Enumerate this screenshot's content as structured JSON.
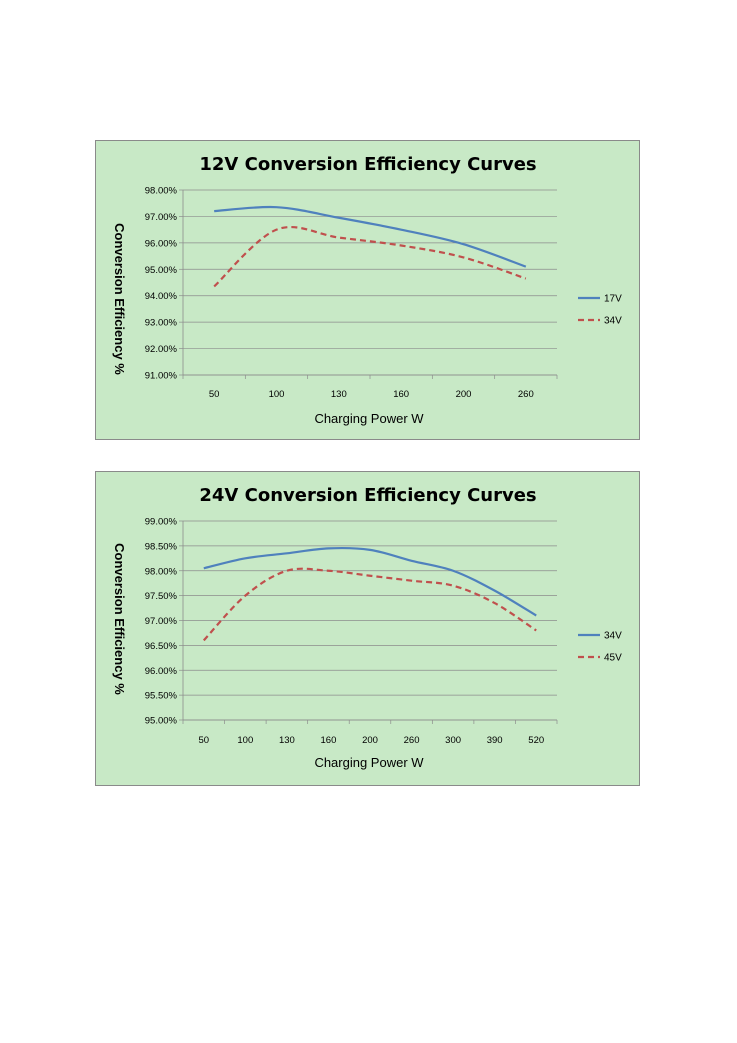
{
  "chart_data": [
    {
      "type": "line",
      "title": "12V Conversion Efficiency Curves",
      "xlabel": "Charging Power W",
      "ylabel": "Conversion Efficiency %",
      "categories": [
        "50",
        "100",
        "130",
        "160",
        "200",
        "260"
      ],
      "y_tick_labels": [
        "91.00%",
        "92.00%",
        "93.00%",
        "94.00%",
        "95.00%",
        "96.00%",
        "97.00%",
        "98.00%"
      ],
      "ylim": [
        91,
        98
      ],
      "grid": true,
      "legend_position": "right",
      "series": [
        {
          "name": "17V",
          "color": "#4f81bd",
          "dash": "solid",
          "values": [
            97.2,
            97.35,
            96.95,
            96.5,
            95.95,
            95.1
          ]
        },
        {
          "name": "34V",
          "color": "#c0504d",
          "dash": "dashed",
          "values": [
            94.35,
            96.5,
            96.2,
            95.9,
            95.45,
            94.65
          ]
        }
      ]
    },
    {
      "type": "line",
      "title": "24V Conversion Efficiency Curves",
      "xlabel": "Charging Power W",
      "ylabel": "Conversion Efficiency %",
      "categories": [
        "50",
        "100",
        "130",
        "160",
        "200",
        "260",
        "300",
        "390",
        "520"
      ],
      "y_tick_labels": [
        "95.00%",
        "95.50%",
        "96.00%",
        "96.50%",
        "97.00%",
        "97.50%",
        "98.00%",
        "98.50%",
        "99.00%"
      ],
      "ylim": [
        95,
        99
      ],
      "grid": true,
      "legend_position": "right",
      "series": [
        {
          "name": "34V",
          "color": "#4f81bd",
          "dash": "solid",
          "values": [
            98.05,
            98.25,
            98.35,
            98.45,
            98.42,
            98.2,
            98.0,
            97.6,
            97.1
          ]
        },
        {
          "name": "45V",
          "color": "#c0504d",
          "dash": "dashed",
          "values": [
            96.6,
            97.5,
            98.0,
            98.0,
            97.9,
            97.8,
            97.7,
            97.35,
            96.8
          ]
        }
      ]
    }
  ]
}
